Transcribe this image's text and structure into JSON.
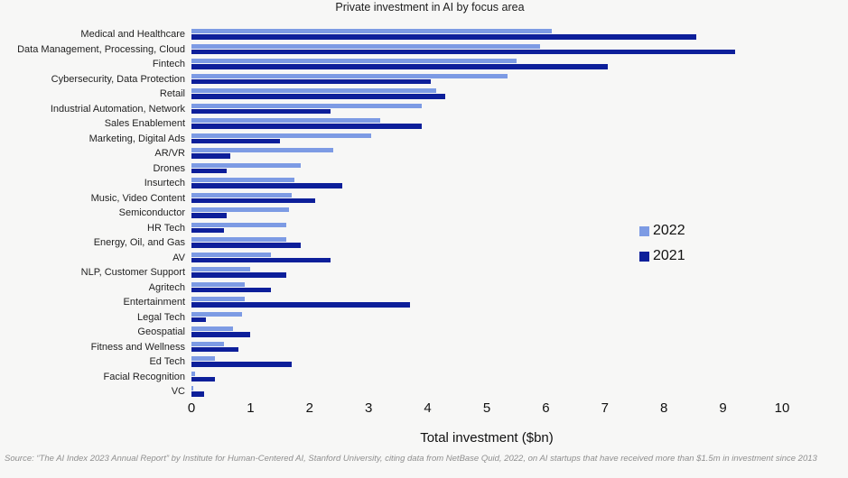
{
  "chart_data": {
    "type": "bar",
    "orientation": "horizontal",
    "title": "Private investment in AI by focus area",
    "xlabel": "Total investment ($bn)",
    "xlim": [
      0,
      10
    ],
    "xticks": [
      0,
      1,
      2,
      3,
      4,
      5,
      6,
      7,
      8,
      9,
      10
    ],
    "grid": false,
    "legend_position": "right",
    "categories": [
      "Medical and Healthcare",
      "Data Management, Processing, Cloud",
      "Fintech",
      "Cybersecurity, Data Protection",
      "Retail",
      "Industrial Automation, Network",
      "Sales Enablement",
      "Marketing, Digital Ads",
      "AR/VR",
      "Drones",
      "Insurtech",
      "Music, Video Content",
      "Semiconductor",
      "HR Tech",
      "Energy, Oil, and Gas",
      "AV",
      "NLP, Customer Support",
      "Agritech",
      "Entertainment",
      "Legal Tech",
      "Geospatial",
      "Fitness and Wellness",
      "Ed Tech",
      "Facial Recognition",
      "VC"
    ],
    "series": [
      {
        "name": "2022",
        "color": "#7d9be4",
        "values": [
          6.1,
          5.9,
          5.5,
          5.35,
          4.15,
          3.9,
          3.2,
          3.05,
          2.4,
          1.85,
          1.75,
          1.7,
          1.65,
          1.6,
          1.6,
          1.35,
          1.0,
          0.9,
          0.9,
          0.85,
          0.7,
          0.55,
          0.4,
          0.06,
          0.03
        ]
      },
      {
        "name": "2021",
        "color": "#0d1f9a",
        "values": [
          8.55,
          9.2,
          7.05,
          4.05,
          4.3,
          2.35,
          3.9,
          1.5,
          0.65,
          0.6,
          2.55,
          2.1,
          0.6,
          0.55,
          1.85,
          2.35,
          1.6,
          1.35,
          3.7,
          0.25,
          1.0,
          0.8,
          1.7,
          0.4,
          0.22
        ]
      }
    ]
  },
  "source": "Source: “The AI Index 2023 Annual Report” by Institute for Human-Centered AI, Stanford University, citing data from NetBase Quid, 2022, on AI startups that have received more than $1.5m in investment since 2013"
}
